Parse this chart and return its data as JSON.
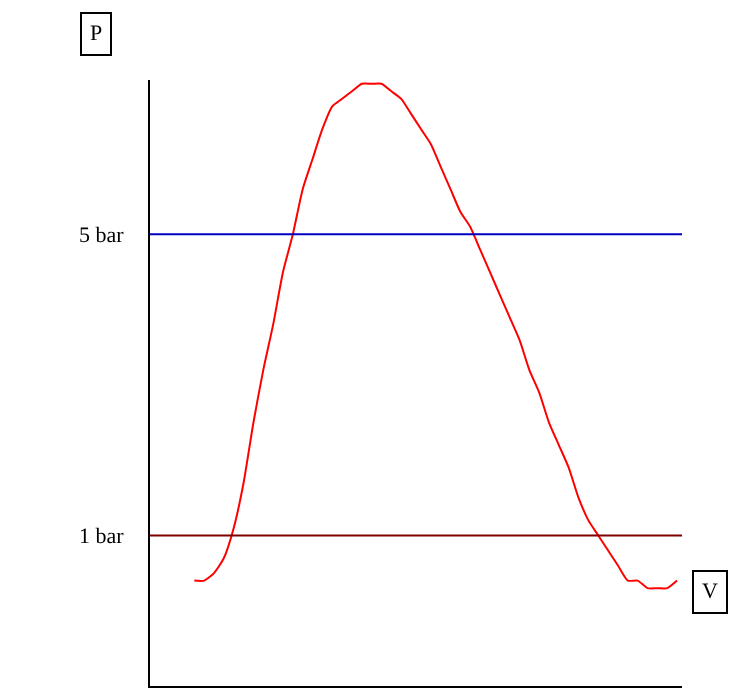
{
  "chart_data": {
    "type": "line",
    "xlabel": "V",
    "annotations": [
      "P"
    ],
    "ylim": [
      -1,
      7.05
    ],
    "categories": [
      null,
      null,
      null,
      null,
      null,
      null,
      null,
      null,
      null,
      null,
      null,
      null,
      null,
      null,
      null,
      null,
      null,
      null,
      null,
      null,
      null,
      null,
      null,
      null,
      null,
      null,
      null,
      null,
      null,
      null,
      null,
      null,
      null,
      null,
      null,
      null,
      null,
      null,
      null,
      null,
      null,
      null,
      null,
      null,
      null,
      null,
      null,
      null,
      null,
      null,
      null,
      null,
      null,
      null
    ],
    "series": [
      {
        "color": "#ff0000",
        "values": [
          null,
          null,
          null,
          null,
          0.4,
          0.4,
          0.5,
          0.7,
          1.1,
          1.7,
          2.5,
          3.2,
          3.8,
          4.5,
          5.0,
          5.6,
          6.0,
          6.4,
          6.7,
          6.8,
          6.9,
          7.0,
          7.0,
          7.0,
          6.9,
          6.8,
          6.6,
          6.4,
          6.2,
          5.9,
          5.6,
          5.3,
          5.1,
          4.8,
          4.5,
          4.2,
          3.9,
          3.6,
          3.2,
          2.9,
          2.5,
          2.2,
          1.9,
          1.5,
          1.2,
          1.0,
          0.8,
          0.6,
          0.4,
          0.4,
          0.3,
          0.3,
          0.3,
          0.4
        ]
      }
    ],
    "yticks": [
      {
        "value": 1,
        "label": "1 bar"
      },
      {
        "value": 5,
        "label": "5 bar"
      }
    ],
    "ref_lines": [
      {
        "axis": "y",
        "value": 5,
        "color": "#0000c0"
      },
      {
        "axis": "y",
        "value": 1,
        "color": "#800000"
      }
    ],
    "marker": "none",
    "line_style": "solid"
  }
}
